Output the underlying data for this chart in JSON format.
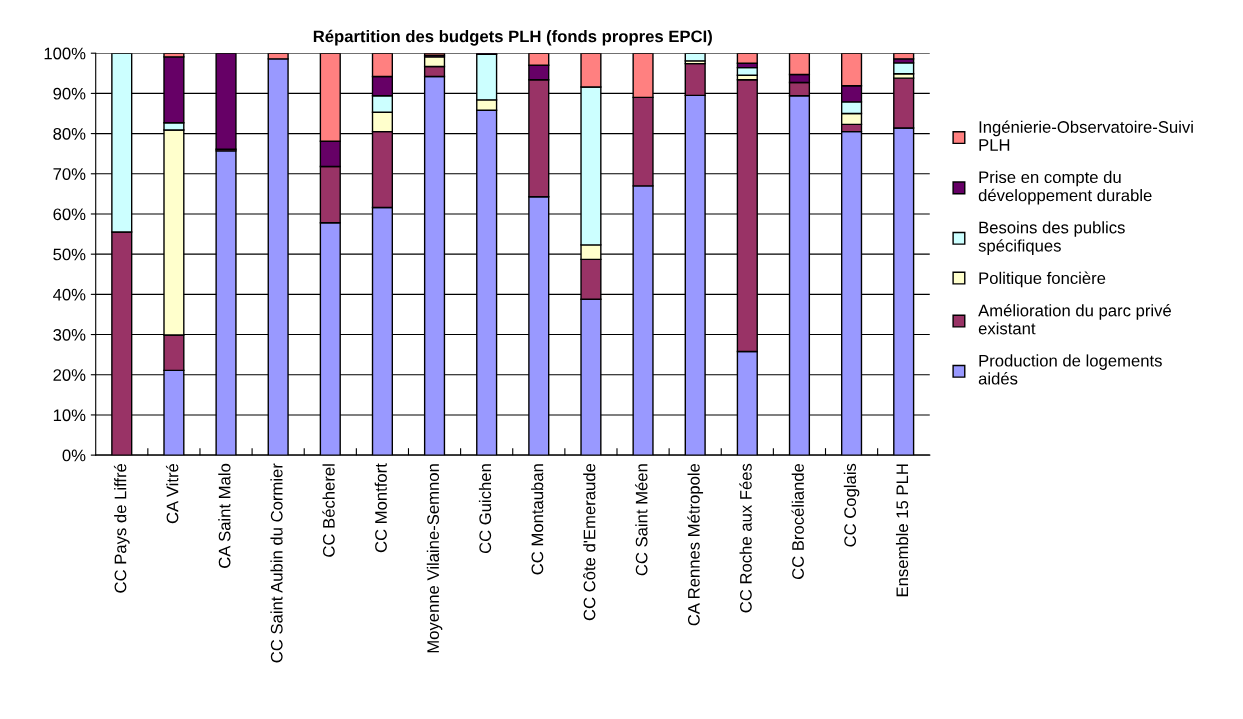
{
  "chart_data": {
    "type": "bar",
    "title": "Répartition des budgets PLH (fonds propres EPCI)",
    "stacked": true,
    "categories": [
      "CC Pays de Liffré",
      "CA Vitré",
      "CA Saint Malo",
      "CC Saint Aubin du Cormier",
      "CC Bécherel",
      "CC Montfort",
      "Moyenne Vilaine-Semnon",
      "CC Guichen",
      "CC Montauban",
      "CC Côte d'Emeraude",
      "CC Saint Méen",
      "CA Rennes Métropole",
      "CC Roche aux Fées",
      "CC Brocéliande",
      "CC Coglais",
      "Ensemble 15 PLH"
    ],
    "series": [
      {
        "name": "Production de logements\naidés",
        "color": "#9999ff",
        "values": [
          null,
          21.1,
          75.7,
          98.6,
          57.8,
          61.6,
          94.2,
          85.8,
          64.3,
          38.8,
          67.0,
          89.5,
          25.8,
          89.4,
          80.5,
          81.4
        ]
      },
      {
        "name": "Amélioration du parc privé\nexistant",
        "color": "#993366",
        "values": [
          55.5,
          8.8,
          0.4,
          null,
          14.0,
          18.9,
          2.5,
          null,
          29.1,
          9.9,
          22.0,
          7.9,
          67.6,
          3.3,
          1.8,
          12.4
        ]
      },
      {
        "name": "Politique foncière",
        "color": "#ffffcc",
        "values": [
          null,
          51.0,
          null,
          null,
          null,
          4.8,
          2.4,
          2.6,
          null,
          3.6,
          null,
          0.7,
          1.1,
          null,
          2.7,
          1.1
        ]
      },
      {
        "name": "Besoins des publics\nspécifiques",
        "color": "#ccffff",
        "values": [
          44.5,
          1.8,
          null,
          null,
          null,
          4.1,
          null,
          11.3,
          null,
          39.3,
          null,
          1.9,
          1.9,
          null,
          2.9,
          2.7
        ]
      },
      {
        "name": "Prise en compte du\ndéveloppement durable",
        "color": "#660066",
        "values": [
          null,
          16.4,
          23.9,
          null,
          6.3,
          4.8,
          0.4,
          0.3,
          3.6,
          null,
          null,
          null,
          1.1,
          2.0,
          4.0,
          1.0
        ]
      },
      {
        "name": "Ingénierie-Observatoire-Suivi\nPLH",
        "color": "#ff8080",
        "values": [
          null,
          0.9,
          null,
          1.4,
          21.9,
          5.8,
          0.5,
          null,
          3.0,
          8.4,
          11.0,
          null,
          2.5,
          5.3,
          8.1,
          1.4
        ]
      }
    ],
    "ylim": [
      0,
      100
    ],
    "yticks": [
      {
        "value": 0,
        "label": "0%"
      },
      {
        "value": 10,
        "label": "10%"
      },
      {
        "value": 20,
        "label": "20%"
      },
      {
        "value": 30,
        "label": "30%"
      },
      {
        "value": 40,
        "label": "40%"
      },
      {
        "value": 50,
        "label": "50%"
      },
      {
        "value": 60,
        "label": "60%"
      },
      {
        "value": 70,
        "label": "70%"
      },
      {
        "value": 80,
        "label": "80%"
      },
      {
        "value": 90,
        "label": "90%"
      },
      {
        "value": 100,
        "label": "100%"
      }
    ],
    "grid": "y",
    "legend": "right"
  }
}
